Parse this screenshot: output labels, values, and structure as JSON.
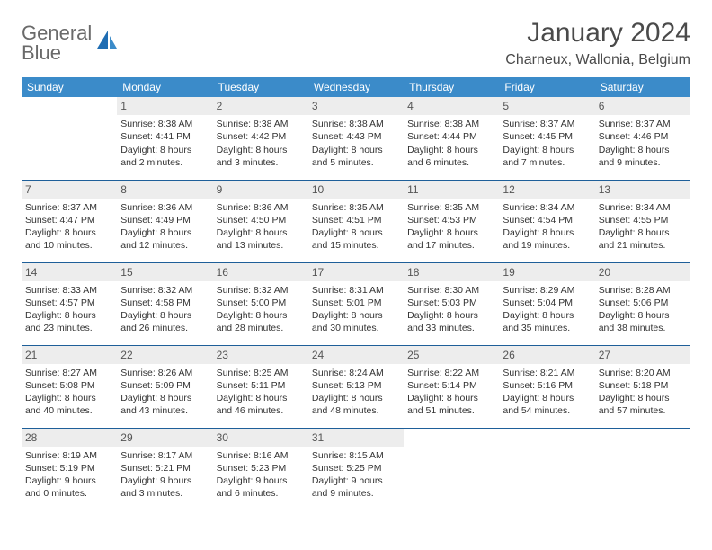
{
  "brand": {
    "name1": "General",
    "name2": "Blue"
  },
  "title": "January 2024",
  "location": "Charneux, Wallonia, Belgium",
  "colors": {
    "header_bg": "#3b8bc9",
    "header_text": "#ffffff",
    "daynum_bg": "#ededed",
    "border": "#1e5f99",
    "text": "#333333",
    "brand_gray": "#6a6a6a",
    "brand_blue": "#2a7ac0"
  },
  "day_headers": [
    "Sunday",
    "Monday",
    "Tuesday",
    "Wednesday",
    "Thursday",
    "Friday",
    "Saturday"
  ],
  "weeks": [
    [
      null,
      {
        "n": "1",
        "sr": "Sunrise: 8:38 AM",
        "ss": "Sunset: 4:41 PM",
        "d1": "Daylight: 8 hours",
        "d2": "and 2 minutes."
      },
      {
        "n": "2",
        "sr": "Sunrise: 8:38 AM",
        "ss": "Sunset: 4:42 PM",
        "d1": "Daylight: 8 hours",
        "d2": "and 3 minutes."
      },
      {
        "n": "3",
        "sr": "Sunrise: 8:38 AM",
        "ss": "Sunset: 4:43 PM",
        "d1": "Daylight: 8 hours",
        "d2": "and 5 minutes."
      },
      {
        "n": "4",
        "sr": "Sunrise: 8:38 AM",
        "ss": "Sunset: 4:44 PM",
        "d1": "Daylight: 8 hours",
        "d2": "and 6 minutes."
      },
      {
        "n": "5",
        "sr": "Sunrise: 8:37 AM",
        "ss": "Sunset: 4:45 PM",
        "d1": "Daylight: 8 hours",
        "d2": "and 7 minutes."
      },
      {
        "n": "6",
        "sr": "Sunrise: 8:37 AM",
        "ss": "Sunset: 4:46 PM",
        "d1": "Daylight: 8 hours",
        "d2": "and 9 minutes."
      }
    ],
    [
      {
        "n": "7",
        "sr": "Sunrise: 8:37 AM",
        "ss": "Sunset: 4:47 PM",
        "d1": "Daylight: 8 hours",
        "d2": "and 10 minutes."
      },
      {
        "n": "8",
        "sr": "Sunrise: 8:36 AM",
        "ss": "Sunset: 4:49 PM",
        "d1": "Daylight: 8 hours",
        "d2": "and 12 minutes."
      },
      {
        "n": "9",
        "sr": "Sunrise: 8:36 AM",
        "ss": "Sunset: 4:50 PM",
        "d1": "Daylight: 8 hours",
        "d2": "and 13 minutes."
      },
      {
        "n": "10",
        "sr": "Sunrise: 8:35 AM",
        "ss": "Sunset: 4:51 PM",
        "d1": "Daylight: 8 hours",
        "d2": "and 15 minutes."
      },
      {
        "n": "11",
        "sr": "Sunrise: 8:35 AM",
        "ss": "Sunset: 4:53 PM",
        "d1": "Daylight: 8 hours",
        "d2": "and 17 minutes."
      },
      {
        "n": "12",
        "sr": "Sunrise: 8:34 AM",
        "ss": "Sunset: 4:54 PM",
        "d1": "Daylight: 8 hours",
        "d2": "and 19 minutes."
      },
      {
        "n": "13",
        "sr": "Sunrise: 8:34 AM",
        "ss": "Sunset: 4:55 PM",
        "d1": "Daylight: 8 hours",
        "d2": "and 21 minutes."
      }
    ],
    [
      {
        "n": "14",
        "sr": "Sunrise: 8:33 AM",
        "ss": "Sunset: 4:57 PM",
        "d1": "Daylight: 8 hours",
        "d2": "and 23 minutes."
      },
      {
        "n": "15",
        "sr": "Sunrise: 8:32 AM",
        "ss": "Sunset: 4:58 PM",
        "d1": "Daylight: 8 hours",
        "d2": "and 26 minutes."
      },
      {
        "n": "16",
        "sr": "Sunrise: 8:32 AM",
        "ss": "Sunset: 5:00 PM",
        "d1": "Daylight: 8 hours",
        "d2": "and 28 minutes."
      },
      {
        "n": "17",
        "sr": "Sunrise: 8:31 AM",
        "ss": "Sunset: 5:01 PM",
        "d1": "Daylight: 8 hours",
        "d2": "and 30 minutes."
      },
      {
        "n": "18",
        "sr": "Sunrise: 8:30 AM",
        "ss": "Sunset: 5:03 PM",
        "d1": "Daylight: 8 hours",
        "d2": "and 33 minutes."
      },
      {
        "n": "19",
        "sr": "Sunrise: 8:29 AM",
        "ss": "Sunset: 5:04 PM",
        "d1": "Daylight: 8 hours",
        "d2": "and 35 minutes."
      },
      {
        "n": "20",
        "sr": "Sunrise: 8:28 AM",
        "ss": "Sunset: 5:06 PM",
        "d1": "Daylight: 8 hours",
        "d2": "and 38 minutes."
      }
    ],
    [
      {
        "n": "21",
        "sr": "Sunrise: 8:27 AM",
        "ss": "Sunset: 5:08 PM",
        "d1": "Daylight: 8 hours",
        "d2": "and 40 minutes."
      },
      {
        "n": "22",
        "sr": "Sunrise: 8:26 AM",
        "ss": "Sunset: 5:09 PM",
        "d1": "Daylight: 8 hours",
        "d2": "and 43 minutes."
      },
      {
        "n": "23",
        "sr": "Sunrise: 8:25 AM",
        "ss": "Sunset: 5:11 PM",
        "d1": "Daylight: 8 hours",
        "d2": "and 46 minutes."
      },
      {
        "n": "24",
        "sr": "Sunrise: 8:24 AM",
        "ss": "Sunset: 5:13 PM",
        "d1": "Daylight: 8 hours",
        "d2": "and 48 minutes."
      },
      {
        "n": "25",
        "sr": "Sunrise: 8:22 AM",
        "ss": "Sunset: 5:14 PM",
        "d1": "Daylight: 8 hours",
        "d2": "and 51 minutes."
      },
      {
        "n": "26",
        "sr": "Sunrise: 8:21 AM",
        "ss": "Sunset: 5:16 PM",
        "d1": "Daylight: 8 hours",
        "d2": "and 54 minutes."
      },
      {
        "n": "27",
        "sr": "Sunrise: 8:20 AM",
        "ss": "Sunset: 5:18 PM",
        "d1": "Daylight: 8 hours",
        "d2": "and 57 minutes."
      }
    ],
    [
      {
        "n": "28",
        "sr": "Sunrise: 8:19 AM",
        "ss": "Sunset: 5:19 PM",
        "d1": "Daylight: 9 hours",
        "d2": "and 0 minutes."
      },
      {
        "n": "29",
        "sr": "Sunrise: 8:17 AM",
        "ss": "Sunset: 5:21 PM",
        "d1": "Daylight: 9 hours",
        "d2": "and 3 minutes."
      },
      {
        "n": "30",
        "sr": "Sunrise: 8:16 AM",
        "ss": "Sunset: 5:23 PM",
        "d1": "Daylight: 9 hours",
        "d2": "and 6 minutes."
      },
      {
        "n": "31",
        "sr": "Sunrise: 8:15 AM",
        "ss": "Sunset: 5:25 PM",
        "d1": "Daylight: 9 hours",
        "d2": "and 9 minutes."
      },
      null,
      null,
      null
    ]
  ]
}
